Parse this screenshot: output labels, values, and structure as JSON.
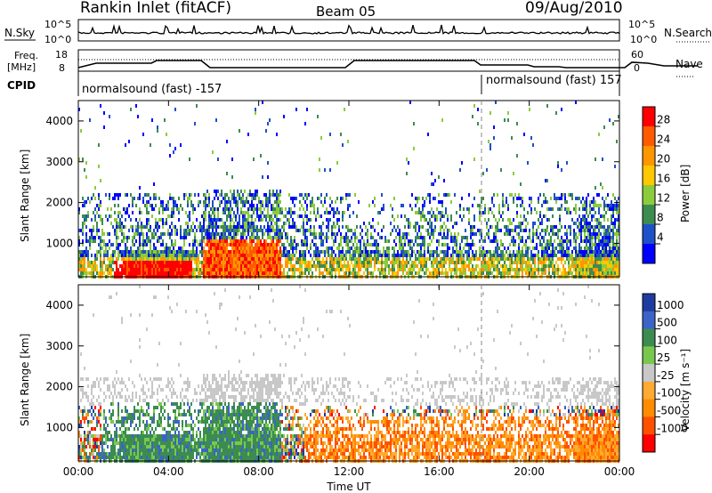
{
  "header": {
    "title": "Rankin Inlet (fitACF)",
    "beam": "Beam 05",
    "date": "09/Aug/2010"
  },
  "noise_panel": {
    "left_label": "N.Sky",
    "left_ticks": [
      "10^5",
      "10^0"
    ],
    "right_ticks": [
      "10^5",
      "10^0"
    ],
    "right_label": "N.Search"
  },
  "freq_panel": {
    "left_label_1": "Freq.",
    "left_label_2": "[MHz]",
    "left_ticks": [
      "18",
      "8"
    ],
    "right_ticks": [
      "60",
      "0"
    ],
    "right_label": "Nave"
  },
  "cpid_panel": {
    "label": "CPID",
    "segments": [
      {
        "text": "normalsound (fast) -157"
      },
      {
        "text": "normalsound (fast) 157"
      }
    ]
  },
  "chart_data": [
    {
      "type": "heatmap",
      "name": "power",
      "ylabel": "Slant Range [km]",
      "xlabel": "",
      "x_ticks": [
        "00:00",
        "04:00",
        "08:00",
        "12:00",
        "16:00",
        "20:00",
        "00:00"
      ],
      "y_ticks": [
        "1000",
        "2000",
        "3000",
        "4000"
      ],
      "xlim_hours": [
        0,
        24
      ],
      "ylim_km": [
        180,
        4500
      ],
      "colorbar_label": "Power [dB]",
      "colorbar_ticks": [
        "28",
        "24",
        "20",
        "16",
        "12",
        "8",
        "4"
      ],
      "colorbar_colors": [
        "#ff0000",
        "#ff5a00",
        "#ff9600",
        "#ffc800",
        "#8ccc3c",
        "#3c8c50",
        "#1e50c8",
        "#0000ff"
      ],
      "vertical_marker_hour": 18
    },
    {
      "type": "heatmap",
      "name": "velocity",
      "ylabel": "Slant Range [km]",
      "xlabel": "Time UT",
      "x_ticks": [
        "00:00",
        "04:00",
        "08:00",
        "12:00",
        "16:00",
        "20:00",
        "00:00"
      ],
      "y_ticks": [
        "1000",
        "2000",
        "3000",
        "4000"
      ],
      "xlim_hours": [
        0,
        24
      ],
      "ylim_km": [
        180,
        4500
      ],
      "colorbar_label": "Velocity [m s⁻¹]",
      "colorbar_ticks": [
        "1000",
        "500",
        "100",
        "25",
        "-25",
        "-100",
        "-500",
        "-1000"
      ],
      "colorbar_colors": [
        "#1e3ca0",
        "#3c64c8",
        "#3c8c50",
        "#78c850",
        "#c8c8c8",
        "#ffaa32",
        "#ff8c00",
        "#ff5000",
        "#ff0000"
      ],
      "vertical_marker_hour": 18
    }
  ]
}
